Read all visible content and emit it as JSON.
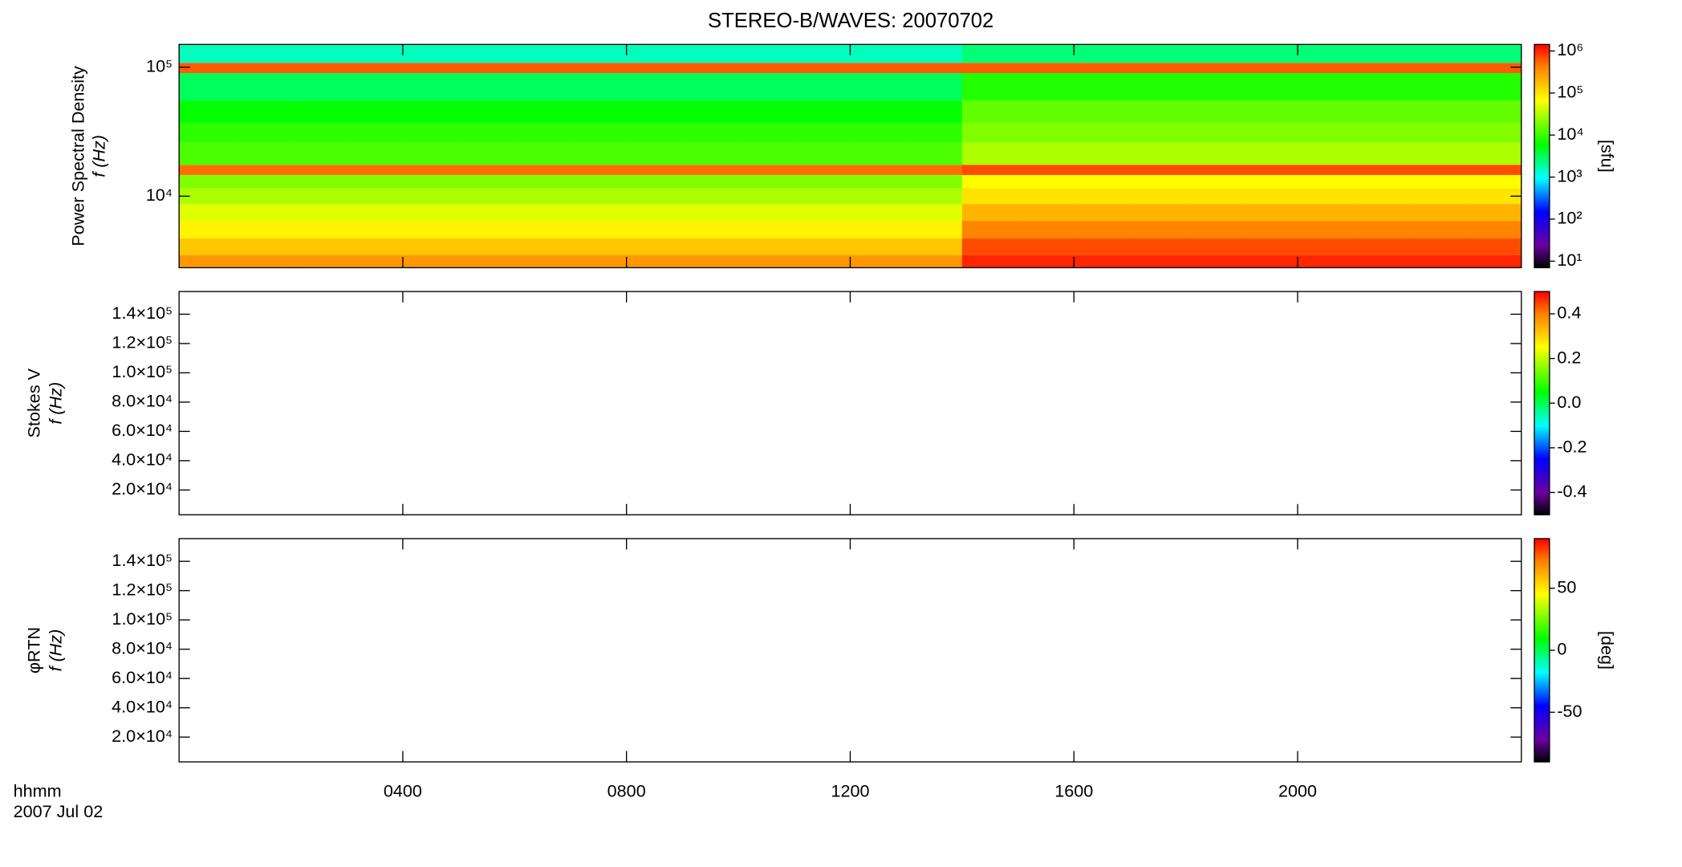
{
  "chart_data": [
    {
      "type": "heatmap",
      "title": "STEREO-B/WAVES: 20070702",
      "ylabel": [
        "Power Spectral Density",
        "f (Hz)"
      ],
      "ylog": true,
      "ylim": [
        2790,
        150000
      ],
      "yticks": [
        {
          "value": 10000,
          "label": "10⁴"
        },
        {
          "value": 100000,
          "label": "10⁵"
        }
      ],
      "xlim": [
        0,
        24
      ],
      "x": [
        0,
        1,
        2,
        3,
        4,
        5,
        6,
        7,
        8,
        9,
        10,
        11,
        12,
        13,
        14,
        15,
        16,
        17,
        18,
        19,
        20,
        21,
        22,
        23,
        24
      ],
      "y": [
        2790,
        3500,
        4700,
        6400,
        8700,
        11500,
        14600,
        17500,
        26000,
        37000,
        55000,
        90000,
        108000,
        150000
      ],
      "z": [
        [
          300000,
          300000,
          300000,
          300000,
          300000,
          300000,
          300000,
          300000,
          300000,
          300000,
          300000,
          300000,
          300000,
          300000,
          1000000,
          1000000,
          1000000,
          1000000,
          1000000,
          1000000,
          1000000,
          1000000,
          1000000,
          1000000
        ],
        [
          150000,
          150000,
          150000,
          150000,
          150000,
          150000,
          150000,
          150000,
          150000,
          150000,
          150000,
          150000,
          150000,
          150000,
          700000,
          700000,
          700000,
          700000,
          700000,
          700000,
          700000,
          700000,
          700000,
          700000
        ],
        [
          80000,
          80000,
          80000,
          80000,
          80000,
          80000,
          80000,
          80000,
          80000,
          80000,
          80000,
          80000,
          80000,
          80000,
          400000,
          400000,
          400000,
          400000,
          400000,
          400000,
          400000,
          400000,
          400000,
          400000
        ],
        [
          50000,
          50000,
          50000,
          50000,
          50000,
          50000,
          50000,
          50000,
          50000,
          50000,
          50000,
          50000,
          50000,
          50000,
          200000,
          200000,
          200000,
          200000,
          200000,
          200000,
          200000,
          200000,
          200000,
          200000
        ],
        [
          30000,
          30000,
          30000,
          30000,
          30000,
          30000,
          30000,
          30000,
          30000,
          30000,
          30000,
          30000,
          30000,
          30000,
          100000,
          100000,
          100000,
          100000,
          100000,
          100000,
          100000,
          100000,
          100000,
          100000
        ],
        [
          20000,
          20000,
          20000,
          20000,
          20000,
          20000,
          20000,
          20000,
          20000,
          20000,
          20000,
          20000,
          20000,
          20000,
          70000,
          70000,
          70000,
          70000,
          70000,
          70000,
          70000,
          70000,
          70000,
          70000
        ],
        [
          500000,
          500000,
          500000,
          500000,
          500000,
          500000,
          500000,
          500000,
          500000,
          500000,
          500000,
          500000,
          500000,
          500000,
          700000,
          700000,
          700000,
          700000,
          700000,
          700000,
          700000,
          700000,
          700000,
          700000
        ],
        [
          12000,
          12000,
          12000,
          12000,
          12000,
          12000,
          12000,
          12000,
          12000,
          12000,
          12000,
          12000,
          12000,
          12000,
          30000,
          30000,
          30000,
          30000,
          30000,
          30000,
          30000,
          30000,
          30000,
          30000
        ],
        [
          9000,
          9000,
          9000,
          9000,
          9000,
          9000,
          9000,
          9000,
          9000,
          9000,
          9000,
          9000,
          9000,
          9000,
          20000,
          20000,
          20000,
          20000,
          20000,
          20000,
          20000,
          20000,
          20000,
          20000
        ],
        [
          6000,
          6000,
          6000,
          6000,
          6000,
          6000,
          6000,
          6000,
          6000,
          6000,
          6000,
          6000,
          6000,
          6000,
          15000,
          15000,
          15000,
          15000,
          15000,
          15000,
          15000,
          15000,
          15000,
          15000
        ],
        [
          3000,
          3000,
          3000,
          3000,
          3000,
          3000,
          3000,
          3000,
          3000,
          3000,
          3000,
          3000,
          3000,
          3000,
          8000,
          8000,
          8000,
          8000,
          8000,
          8000,
          8000,
          8000,
          8000,
          8000
        ],
        [
          600000,
          600000,
          600000,
          600000,
          600000,
          600000,
          600000,
          600000,
          600000,
          600000,
          600000,
          600000,
          600000,
          600000,
          600000,
          600000,
          600000,
          600000,
          600000,
          600000,
          600000,
          600000,
          600000,
          600000
        ],
        [
          1500,
          1500,
          1500,
          1500,
          1500,
          1500,
          1500,
          1500,
          1500,
          1500,
          1500,
          1500,
          1500,
          1500,
          2500,
          2500,
          2500,
          2500,
          2500,
          2500,
          2500,
          2500,
          2500,
          2500
        ]
      ],
      "zlog": true,
      "zlim": [
        7,
        1430000
      ],
      "zticks": [
        {
          "value": 10,
          "label": "10¹"
        },
        {
          "value": 100,
          "label": "10²"
        },
        {
          "value": 1000,
          "label": "10³"
        },
        {
          "value": 10000,
          "label": "10⁴"
        },
        {
          "value": 100000,
          "label": "10⁵"
        },
        {
          "value": 1000000,
          "label": "10⁶"
        }
      ],
      "zlabel": "[sfu]"
    },
    {
      "type": "heatmap",
      "ylabel": [
        "Stokes V",
        "f (Hz)"
      ],
      "ylog": false,
      "ylim": [
        3070,
        155500
      ],
      "yticks": [
        {
          "value": 20000,
          "label": "2.0×10⁴"
        },
        {
          "value": 40000,
          "label": "4.0×10⁴"
        },
        {
          "value": 60000,
          "label": "6.0×10⁴"
        },
        {
          "value": 80000,
          "label": "8.0×10⁴"
        },
        {
          "value": 100000,
          "label": "1.0×10⁵"
        },
        {
          "value": 120000,
          "label": "1.2×10⁵"
        },
        {
          "value": 140000,
          "label": "1.4×10⁵"
        }
      ],
      "xlim": [
        0,
        24
      ],
      "zlog": false,
      "zlim": [
        -0.5,
        0.5
      ],
      "zticks": [
        -0.4,
        -0.2,
        {
          "value": 0,
          "label": "0.0"
        },
        0.2,
        0.4
      ]
    },
    {
      "type": "heatmap",
      "ylabel": [
        "φRTN",
        "f (Hz)"
      ],
      "ylog": false,
      "ylim": [
        3070,
        155500
      ],
      "yticks": [
        {
          "value": 20000,
          "label": "2.0×10⁴"
        },
        {
          "value": 40000,
          "label": "4.0×10⁴"
        },
        {
          "value": 60000,
          "label": "6.0×10⁴"
        },
        {
          "value": 80000,
          "label": "8.0×10⁴"
        },
        {
          "value": 100000,
          "label": "1.0×10⁵"
        },
        {
          "value": 120000,
          "label": "1.2×10⁵"
        },
        {
          "value": 140000,
          "label": "1.4×10⁵"
        }
      ],
      "xlim": [
        0,
        24
      ],
      "xticks": [
        {
          "value": 4,
          "label": "0400"
        },
        {
          "value": 8,
          "label": "0800"
        },
        {
          "value": 12,
          "label": "1200"
        },
        {
          "value": 16,
          "label": "1600"
        },
        {
          "value": 20,
          "label": "2000"
        }
      ],
      "xlabel": [
        "hhmm",
        "2007 Jul 02"
      ],
      "zlog": false,
      "zlim": [
        -90,
        90
      ],
      "zticks": [
        -50,
        0,
        50
      ],
      "zlabel": "[deg]"
    }
  ]
}
